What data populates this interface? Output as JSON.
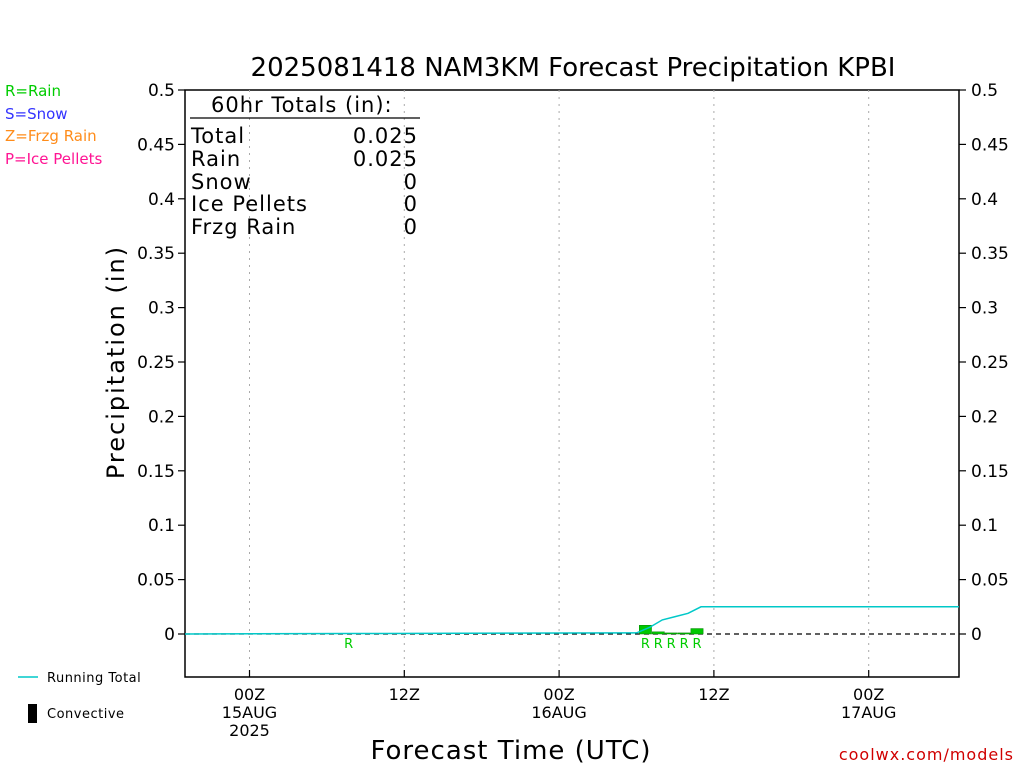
{
  "chart_data": {
    "type": "bar",
    "title": "2025081418 NAM3KM Forecast Precipitation KPBI",
    "ylabel": "Precipitation (in)",
    "xlabel": "Forecast Time (UTC)",
    "ylim": [
      0,
      0.5
    ],
    "yticks": [
      "0",
      "0.05",
      "0.1",
      "0.15",
      "0.2",
      "0.25",
      "0.3",
      "0.35",
      "0.4",
      "0.45",
      "0.5"
    ],
    "ytick_values": [
      0,
      0.05,
      0.1,
      0.15,
      0.2,
      0.25,
      0.3,
      0.35,
      0.4,
      0.45,
      0.5
    ],
    "x_range_hours": [
      -5,
      55
    ],
    "x_ticks": [
      {
        "hour": 0,
        "lines": [
          "00Z",
          "15AUG",
          "2025"
        ]
      },
      {
        "hour": 12,
        "lines": [
          "12Z"
        ]
      },
      {
        "hour": 24,
        "lines": [
          "00Z",
          "16AUG"
        ]
      },
      {
        "hour": 36,
        "lines": [
          "12Z"
        ]
      },
      {
        "hour": 48,
        "lines": [
          "00Z",
          "17AUG"
        ]
      }
    ],
    "grid": "vertical dotted at tick hours",
    "series": [
      {
        "name": "Running Total",
        "type": "line",
        "color": "#00c8c8",
        "x": [
          -5,
          8,
          30,
          31,
          32,
          33,
          34,
          35,
          36,
          55
        ],
        "y": [
          0,
          0.0005,
          0.001,
          0.006,
          0.013,
          0.016,
          0.019,
          0.025,
          0.025,
          0.025
        ]
      }
    ],
    "bars": {
      "color": "#00c800",
      "hours": [
        31,
        32,
        33,
        34,
        35
      ],
      "values": [
        0.008,
        0.002,
        0.001,
        0.001,
        0.005
      ]
    },
    "ptype_marks": {
      "color": "#00cc00",
      "hours": [
        8,
        31,
        32,
        33,
        34,
        35
      ],
      "labels": [
        "R",
        "R",
        "R",
        "R",
        "R",
        "R"
      ]
    }
  },
  "totals": {
    "header": "60hr Totals (in):",
    "rows": [
      {
        "label": "Total",
        "value": "0.025"
      },
      {
        "label": "Rain",
        "value": "0.025"
      },
      {
        "label": "Snow",
        "value": "0"
      },
      {
        "label": "Ice Pellets",
        "value": "0"
      },
      {
        "label": "Frzg Rain",
        "value": "0"
      }
    ]
  },
  "ptype_legend": [
    {
      "text": "R=Rain",
      "color": "#00cc00"
    },
    {
      "text": "S=Snow",
      "color": "#3333ff"
    },
    {
      "text": "Z=Frzg Rain",
      "color": "#ff8c1a"
    },
    {
      "text": "P=Ice Pellets",
      "color": "#ff1493"
    }
  ],
  "legend": {
    "running_total": "Running Total",
    "convective": "Convective",
    "running_total_color": "#00c8c8",
    "convective_color": "#000000"
  },
  "credit": "coolwx.com/models"
}
